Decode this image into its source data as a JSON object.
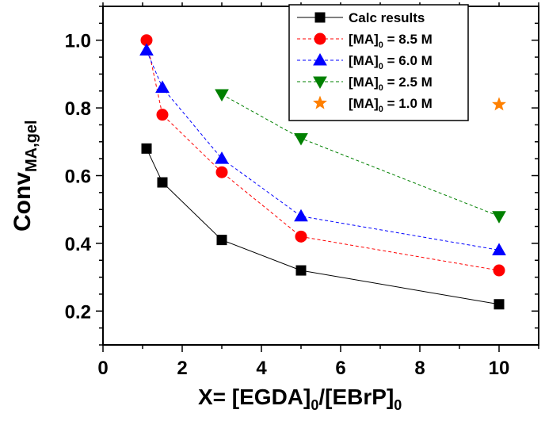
{
  "chart_data": {
    "type": "line",
    "xlabel": {
      "main": "X= [EGDA]",
      "sub1": "0",
      "mid": "/[EBrP]",
      "sub2": "0"
    },
    "ylabel": {
      "main": "Conv",
      "sub": "MA,gel"
    },
    "xlim": [
      0,
      11
    ],
    "ylim": [
      0.1,
      1.1
    ],
    "xticks": [
      0,
      2,
      4,
      6,
      8,
      10
    ],
    "yticks": [
      0.2,
      0.4,
      0.6,
      0.8,
      1.0
    ],
    "xtick_labels": [
      "0",
      "2",
      "4",
      "6",
      "8",
      "10"
    ],
    "ytick_labels": [
      "0.2",
      "0.4",
      "0.6",
      "0.8",
      "1.0"
    ],
    "grid": false,
    "legend_position": "top-right",
    "series": [
      {
        "name": "Calc results",
        "legend_label": {
          "text": "Calc results"
        },
        "color": "#000000",
        "marker": "square",
        "line": "solid",
        "x": [
          1.1,
          1.5,
          3,
          5,
          10
        ],
        "y": [
          0.68,
          0.58,
          0.41,
          0.32,
          0.22
        ]
      },
      {
        "name": "[MA]0 = 8.5 M",
        "legend_label": {
          "main": "[MA]",
          "sub": "0",
          "rest": " = 8.5 M"
        },
        "color": "#ff0000",
        "marker": "circle",
        "line": "dashed",
        "x": [
          1.1,
          1.5,
          3,
          5,
          10
        ],
        "y": [
          1.0,
          0.78,
          0.61,
          0.42,
          0.32
        ]
      },
      {
        "name": "[MA]0 = 6.0 M",
        "legend_label": {
          "main": "[MA]",
          "sub": "0",
          "rest": " = 6.0 M"
        },
        "color": "#0000ff",
        "marker": "triangle-up",
        "line": "dashed",
        "x": [
          1.1,
          1.5,
          3,
          5,
          10
        ],
        "y": [
          0.97,
          0.86,
          0.65,
          0.48,
          0.38
        ]
      },
      {
        "name": "[MA]0 = 2.5 M",
        "legend_label": {
          "main": "[MA]",
          "sub": "0",
          "rest": " = 2.5 M"
        },
        "color": "#008000",
        "marker": "triangle-down",
        "line": "dashed",
        "x": [
          3,
          5,
          10
        ],
        "y": [
          0.84,
          0.71,
          0.48
        ]
      },
      {
        "name": "[MA]0 = 1.0 M",
        "legend_label": {
          "main": "[MA]",
          "sub": "0",
          "rest": " = 1.0 M"
        },
        "color": "#ff8000",
        "marker": "star",
        "line": "none",
        "x": [
          10
        ],
        "y": [
          0.81
        ]
      }
    ]
  }
}
